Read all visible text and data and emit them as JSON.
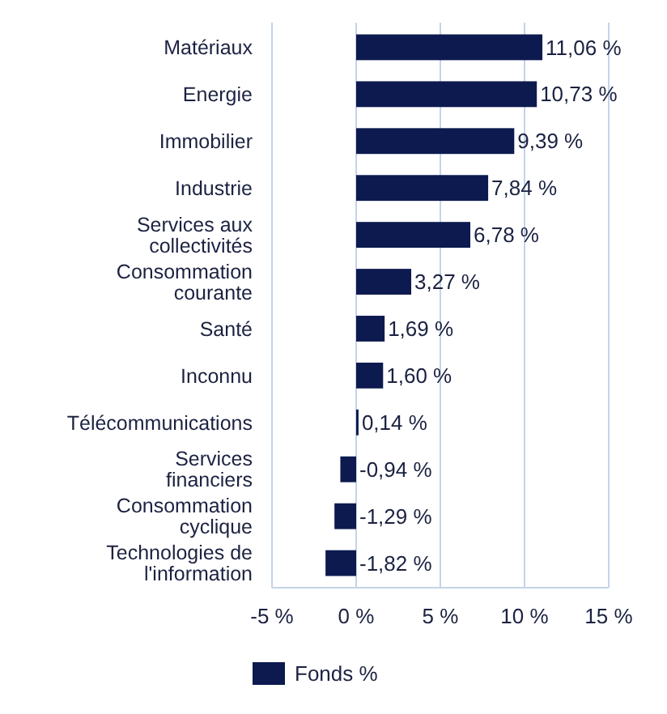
{
  "chart_data": {
    "type": "bar",
    "orientation": "horizontal",
    "categories": [
      "Matériaux",
      "Energie",
      "Immobilier",
      "Industrie",
      "Services aux collectivités",
      "Consommation courante",
      "Santé",
      "Inconnu",
      "Télécommunications",
      "Services financiers",
      "Consommation cyclique",
      "Technologies de l'information"
    ],
    "series": [
      {
        "name": "Fonds %",
        "color": "#0c1a4f",
        "values": [
          11.06,
          10.73,
          9.39,
          7.84,
          6.78,
          3.27,
          1.69,
          1.6,
          0.14,
          -0.94,
          -1.29,
          -1.82
        ],
        "value_labels": [
          "11,06 %",
          "10,73 %",
          "9,39 %",
          "7,84 %",
          "6,78 %",
          "3,27 %",
          "1,69 %",
          "1,60 %",
          "0,14 %",
          "-0,94 %",
          "-1,29 %",
          "-1,82 %"
        ]
      }
    ],
    "xlim": [
      -5,
      15
    ],
    "xticks": [
      {
        "value": -5,
        "label": "-5 %"
      },
      {
        "value": 0,
        "label": "0 %"
      },
      {
        "value": 5,
        "label": "5 %"
      },
      {
        "value": 10,
        "label": "10 %"
      },
      {
        "value": 15,
        "label": "15 %"
      }
    ],
    "grid": "x",
    "legend": "bottom"
  }
}
